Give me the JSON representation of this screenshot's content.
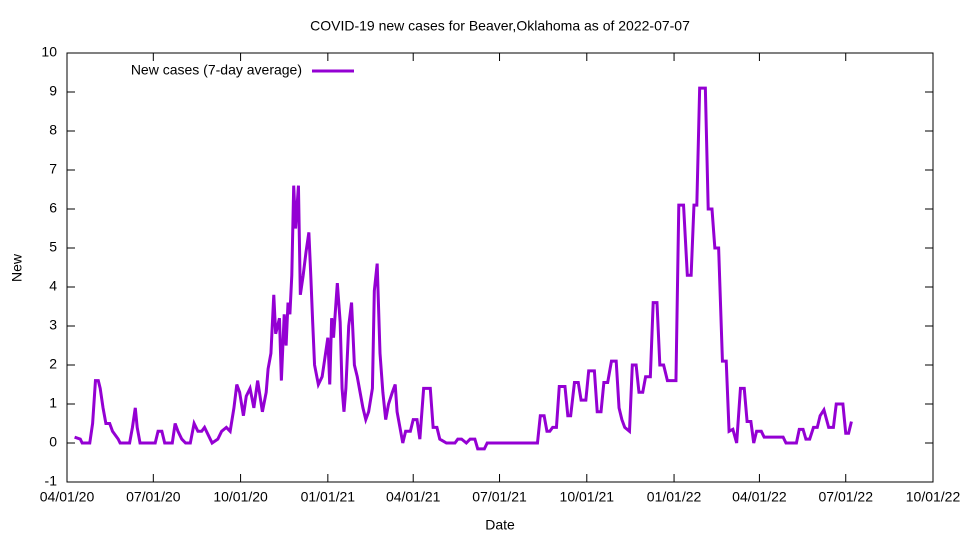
{
  "chart_data": {
    "type": "line",
    "title": "COVID-19 new cases for Beaver,Oklahoma as of 2022-07-07",
    "xlabel": "Date",
    "ylabel": "New",
    "legend": "top-left",
    "grid": false,
    "xlim": [
      "2020-04-01",
      "2022-10-01"
    ],
    "xticks": [
      {
        "value": "2020-04-01",
        "label": "04/01/20"
      },
      {
        "value": "2020-07-01",
        "label": "07/01/20"
      },
      {
        "value": "2020-10-01",
        "label": "10/01/20"
      },
      {
        "value": "2021-01-01",
        "label": "01/01/21"
      },
      {
        "value": "2021-04-01",
        "label": "04/01/21"
      },
      {
        "value": "2021-07-01",
        "label": "07/01/21"
      },
      {
        "value": "2021-10-01",
        "label": "10/01/21"
      },
      {
        "value": "2022-01-01",
        "label": "01/01/22"
      },
      {
        "value": "2022-04-01",
        "label": "04/01/22"
      },
      {
        "value": "2022-07-01",
        "label": "07/01/22"
      },
      {
        "value": "2022-10-01",
        "label": "10/01/22"
      }
    ],
    "ylim": [
      -1,
      10
    ],
    "yticks": [
      -1,
      0,
      1,
      2,
      3,
      4,
      5,
      6,
      7,
      8,
      9,
      10
    ],
    "x": [
      "2020-04-09",
      "2020-04-15",
      "2020-04-17",
      "2020-04-25",
      "2020-04-28",
      "2020-05-01",
      "2020-05-04",
      "2020-05-06",
      "2020-05-09",
      "2020-05-12",
      "2020-05-16",
      "2020-05-19",
      "2020-05-25",
      "2020-05-27",
      "2020-06-06",
      "2020-06-09",
      "2020-06-12",
      "2020-06-14",
      "2020-06-17",
      "2020-07-03",
      "2020-07-06",
      "2020-07-10",
      "2020-07-13",
      "2020-07-21",
      "2020-07-24",
      "2020-07-27",
      "2020-07-31",
      "2020-08-04",
      "2020-08-09",
      "2020-08-13",
      "2020-08-17",
      "2020-08-21",
      "2020-08-24",
      "2020-08-28",
      "2020-09-01",
      "2020-09-07",
      "2020-09-11",
      "2020-09-16",
      "2020-09-20",
      "2020-09-24",
      "2020-09-27",
      "2020-09-30",
      "2020-10-04",
      "2020-10-07",
      "2020-10-11",
      "2020-10-15",
      "2020-10-19",
      "2020-10-24",
      "2020-10-28",
      "2020-10-30",
      "2020-11-02",
      "2020-11-05",
      "2020-11-07",
      "2020-11-11",
      "2020-11-13",
      "2020-11-16",
      "2020-11-18",
      "2020-11-20",
      "2020-11-22",
      "2020-11-24",
      "2020-11-26",
      "2020-11-28",
      "2020-12-01",
      "2020-12-03",
      "2020-12-06",
      "2020-12-09",
      "2020-12-12",
      "2020-12-14",
      "2020-12-16",
      "2020-12-18",
      "2020-12-22",
      "2020-12-26",
      "2020-12-29",
      "2021-01-01",
      "2021-01-03",
      "2021-01-05",
      "2021-01-07",
      "2021-01-11",
      "2021-01-14",
      "2021-01-16",
      "2021-01-18",
      "2021-01-20",
      "2021-01-23",
      "2021-01-26",
      "2021-01-29",
      "2021-02-01",
      "2021-02-04",
      "2021-02-07",
      "2021-02-10",
      "2021-02-13",
      "2021-02-17",
      "2021-02-19",
      "2021-02-22",
      "2021-02-25",
      "2021-02-28",
      "2021-03-03",
      "2021-03-06",
      "2021-03-10",
      "2021-03-13",
      "2021-03-15",
      "2021-03-18",
      "2021-03-21",
      "2021-03-24",
      "2021-03-29",
      "2021-04-01",
      "2021-04-05",
      "2021-04-08",
      "2021-04-12",
      "2021-04-19",
      "2021-04-22",
      "2021-04-26",
      "2021-04-29",
      "2021-05-06",
      "2021-05-15",
      "2021-05-18",
      "2021-05-22",
      "2021-05-27",
      "2021-05-31",
      "2021-06-05",
      "2021-06-08",
      "2021-06-15",
      "2021-06-18",
      "2021-08-10",
      "2021-08-13",
      "2021-08-17",
      "2021-08-20",
      "2021-08-23",
      "2021-08-26",
      "2021-08-30",
      "2021-09-02",
      "2021-09-08",
      "2021-09-11",
      "2021-09-14",
      "2021-09-18",
      "2021-09-22",
      "2021-09-25",
      "2021-09-30",
      "2021-10-03",
      "2021-10-09",
      "2021-10-12",
      "2021-10-16",
      "2021-10-19",
      "2021-10-23",
      "2021-10-27",
      "2021-11-01",
      "2021-11-04",
      "2021-11-07",
      "2021-11-10",
      "2021-11-15",
      "2021-11-18",
      "2021-11-22",
      "2021-11-25",
      "2021-11-29",
      "2021-12-02",
      "2021-12-07",
      "2021-12-10",
      "2021-12-14",
      "2021-12-17",
      "2021-12-21",
      "2021-12-25",
      "2022-01-03",
      "2022-01-06",
      "2022-01-11",
      "2022-01-15",
      "2022-01-19",
      "2022-01-22",
      "2022-01-25",
      "2022-01-28",
      "2022-02-03",
      "2022-02-06",
      "2022-02-10",
      "2022-02-13",
      "2022-02-17",
      "2022-02-21",
      "2022-02-25",
      "2022-02-28",
      "2022-03-04",
      "2022-03-08",
      "2022-03-12",
      "2022-03-16",
      "2022-03-19",
      "2022-03-23",
      "2022-03-26",
      "2022-03-29",
      "2022-04-03",
      "2022-04-06",
      "2022-04-26",
      "2022-04-29",
      "2022-05-10",
      "2022-05-13",
      "2022-05-17",
      "2022-05-20",
      "2022-05-24",
      "2022-05-28",
      "2022-06-01",
      "2022-06-04",
      "2022-06-08",
      "2022-06-13",
      "2022-06-18",
      "2022-06-21",
      "2022-06-28",
      "2022-07-01",
      "2022-07-04",
      "2022-07-07"
    ],
    "series": [
      {
        "name": "New cases (7-day average)",
        "color": "#9400d3",
        "values": [
          0.15,
          0.1,
          0,
          0,
          0.5,
          1.6,
          1.6,
          1.4,
          0.9,
          0.5,
          0.5,
          0.3,
          0.1,
          0,
          0,
          0.4,
          0.9,
          0.4,
          0,
          0,
          0.3,
          0.3,
          0,
          0,
          0.5,
          0.3,
          0.1,
          0,
          0,
          0.5,
          0.3,
          0.3,
          0.4,
          0.2,
          0,
          0.1,
          0.3,
          0.4,
          0.3,
          0.9,
          1.5,
          1.3,
          0.7,
          1.2,
          1.4,
          0.9,
          1.6,
          0.8,
          1.3,
          1.9,
          2.3,
          3.8,
          2.8,
          3.2,
          1.6,
          3.3,
          2.5,
          3.6,
          3.3,
          4.3,
          6.6,
          5.5,
          6.6,
          3.8,
          4.3,
          4.9,
          5.4,
          4.3,
          3.1,
          2.0,
          1.5,
          1.7,
          2.2,
          2.7,
          1.5,
          3.2,
          2.7,
          4.1,
          3.1,
          1.4,
          0.8,
          1.4,
          3.0,
          3.6,
          2.0,
          1.7,
          1.3,
          0.9,
          0.6,
          0.8,
          1.4,
          3.9,
          4.6,
          2.3,
          1.3,
          0.6,
          1.0,
          1.3,
          1.5,
          0.8,
          0.4,
          0,
          0.3,
          0.3,
          0.6,
          0.6,
          0.1,
          1.4,
          1.4,
          0.4,
          0.4,
          0.1,
          0,
          0,
          0.1,
          0.1,
          0,
          0.1,
          0.1,
          -0.15,
          -0.15,
          0,
          0,
          0.7,
          0.7,
          0.3,
          0.3,
          0.4,
          0.4,
          1.45,
          1.45,
          0.7,
          0.7,
          1.55,
          1.55,
          1.1,
          1.1,
          1.85,
          1.85,
          0.8,
          0.8,
          1.55,
          1.55,
          2.1,
          2.1,
          0.9,
          0.6,
          0.4,
          0.3,
          2.0,
          2.0,
          1.3,
          1.3,
          1.7,
          1.7,
          3.6,
          3.6,
          2.0,
          2.0,
          1.6,
          1.6,
          6.1,
          6.1,
          4.3,
          4.3,
          6.1,
          6.1,
          9.1,
          9.1,
          6.0,
          6.0,
          5.0,
          5.0,
          2.1,
          2.1,
          0.3,
          0.35,
          0,
          1.4,
          1.4,
          0.55,
          0.55,
          0,
          0.3,
          0.3,
          0.15,
          0.15,
          0,
          0,
          0.35,
          0.35,
          0.1,
          0.1,
          0.4,
          0.4,
          0.7,
          0.85,
          0.4,
          0.4,
          1.0,
          1.0,
          0.25,
          0.25,
          0.55
        ]
      }
    ]
  }
}
